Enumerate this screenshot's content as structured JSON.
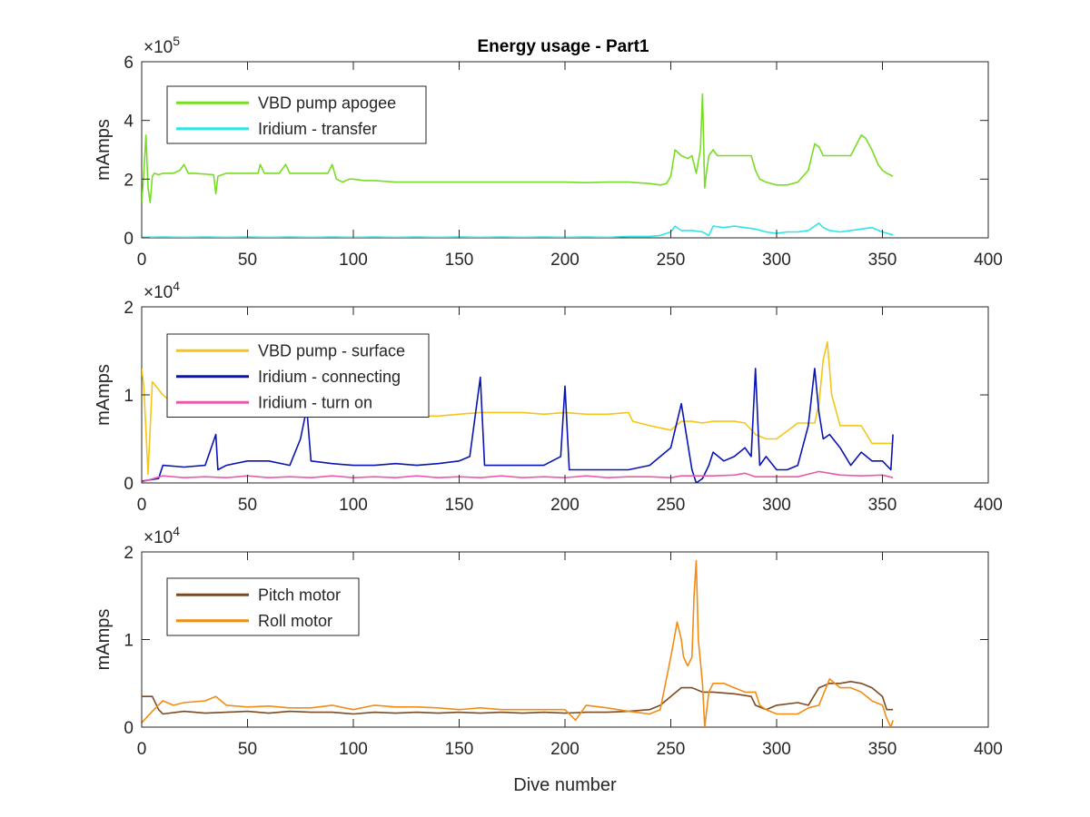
{
  "figure": {
    "title": "Energy usage - Part1"
  },
  "chart_data": [
    {
      "type": "line",
      "title": "Energy usage - Part1",
      "xlabel": "",
      "ylabel": "mAmps",
      "xlim": [
        0,
        400
      ],
      "ylim": [
        0,
        600000
      ],
      "x_ticks": [
        "0",
        "50",
        "100",
        "150",
        "200",
        "250",
        "300",
        "350",
        "400"
      ],
      "y_ticks": [
        "0",
        "2",
        "4",
        "6"
      ],
      "y_exponent": "×10",
      "y_exponent_power": "5",
      "grid": false,
      "legend_position": "top-left",
      "series": [
        {
          "name": "VBD pump apogee",
          "color": "#77dd22",
          "x": [
            0,
            1,
            2,
            3,
            4,
            5,
            6,
            8,
            10,
            15,
            18,
            20,
            22,
            25,
            34,
            35,
            36,
            40,
            50,
            55,
            56,
            58,
            65,
            68,
            70,
            80,
            88,
            90,
            92,
            95,
            98,
            100,
            105,
            110,
            120,
            130,
            150,
            170,
            190,
            200,
            210,
            220,
            230,
            240,
            245,
            248,
            250,
            252,
            255,
            258,
            260,
            262,
            264,
            265,
            266,
            267,
            268,
            270,
            272,
            275,
            280,
            285,
            288,
            290,
            292,
            295,
            300,
            305,
            310,
            315,
            318,
            320,
            322,
            325,
            330,
            335,
            340,
            342,
            345,
            348,
            350,
            352,
            355
          ],
          "y": [
            120000,
            220000,
            350000,
            170000,
            120000,
            210000,
            220000,
            215000,
            220000,
            220000,
            230000,
            250000,
            220000,
            220000,
            215000,
            150000,
            210000,
            220000,
            220000,
            220000,
            250000,
            220000,
            220000,
            250000,
            220000,
            220000,
            220000,
            250000,
            200000,
            190000,
            200000,
            200000,
            195000,
            195000,
            190000,
            190000,
            190000,
            190000,
            190000,
            190000,
            188000,
            190000,
            190000,
            185000,
            180000,
            185000,
            210000,
            300000,
            280000,
            270000,
            280000,
            220000,
            300000,
            490000,
            170000,
            230000,
            280000,
            300000,
            280000,
            280000,
            280000,
            280000,
            280000,
            230000,
            200000,
            190000,
            180000,
            180000,
            190000,
            230000,
            320000,
            310000,
            280000,
            280000,
            280000,
            280000,
            350000,
            340000,
            300000,
            250000,
            230000,
            220000,
            210000
          ]
        },
        {
          "name": "Iridium - transfer",
          "color": "#2ee6e6",
          "x": [
            0,
            10,
            20,
            30,
            40,
            50,
            60,
            70,
            80,
            90,
            100,
            110,
            120,
            130,
            140,
            150,
            160,
            170,
            180,
            190,
            200,
            210,
            220,
            230,
            240,
            245,
            250,
            252,
            255,
            260,
            265,
            268,
            270,
            275,
            280,
            285,
            290,
            295,
            300,
            305,
            310,
            315,
            320,
            322,
            325,
            330,
            335,
            340,
            345,
            350,
            355
          ],
          "y": [
            2000,
            3000,
            2000,
            3000,
            2000,
            3000,
            2000,
            3000,
            2000,
            3000,
            2000,
            3000,
            2000,
            3000,
            2000,
            3000,
            2000,
            3000,
            2000,
            3000,
            2000,
            3000,
            2000,
            5000,
            5000,
            8000,
            20000,
            40000,
            25000,
            25000,
            20000,
            8000,
            40000,
            35000,
            40000,
            35000,
            30000,
            20000,
            15000,
            20000,
            20000,
            25000,
            50000,
            35000,
            25000,
            20000,
            25000,
            30000,
            35000,
            20000,
            10000
          ]
        }
      ]
    },
    {
      "type": "line",
      "title": "",
      "xlabel": "",
      "ylabel": "mAmps",
      "xlim": [
        0,
        400
      ],
      "ylim": [
        0,
        20000
      ],
      "x_ticks": [
        "0",
        "50",
        "100",
        "150",
        "200",
        "250",
        "300",
        "350",
        "400"
      ],
      "y_ticks": [
        "0",
        "1",
        "2"
      ],
      "y_exponent": "×10",
      "y_exponent_power": "4",
      "grid": false,
      "legend_position": "top-left",
      "series": [
        {
          "name": "VBD pump - surface",
          "color": "#f5c518",
          "x": [
            0,
            1,
            3,
            5,
            10,
            15,
            20,
            25,
            30,
            40,
            50,
            60,
            70,
            80,
            90,
            100,
            110,
            120,
            130,
            140,
            150,
            160,
            170,
            180,
            190,
            200,
            210,
            220,
            230,
            232,
            240,
            250,
            255,
            260,
            265,
            270,
            280,
            285,
            290,
            295,
            300,
            310,
            318,
            320,
            322,
            324,
            326,
            330,
            340,
            345,
            350,
            355
          ],
          "y": [
            13000,
            11000,
            1000,
            11500,
            10000,
            9000,
            9500,
            9000,
            8800,
            8500,
            8200,
            8000,
            8000,
            8000,
            7800,
            7800,
            7800,
            7800,
            7600,
            7600,
            7800,
            8000,
            8000,
            8000,
            7800,
            8000,
            7800,
            7800,
            8000,
            7000,
            6500,
            6000,
            7000,
            7000,
            6800,
            7000,
            7000,
            6800,
            5500,
            5000,
            5000,
            6800,
            6800,
            9000,
            14000,
            16000,
            10000,
            6500,
            6500,
            4500,
            4500,
            4500
          ]
        },
        {
          "name": "Iridium - connecting",
          "color": "#0a14b4",
          "x": [
            0,
            8,
            10,
            20,
            30,
            35,
            36,
            40,
            50,
            60,
            70,
            75,
            78,
            80,
            90,
            100,
            110,
            120,
            130,
            140,
            150,
            155,
            160,
            162,
            170,
            180,
            190,
            198,
            200,
            202,
            210,
            220,
            230,
            240,
            245,
            250,
            255,
            260,
            262,
            265,
            268,
            270,
            275,
            280,
            285,
            288,
            290,
            292,
            295,
            300,
            305,
            310,
            315,
            318,
            320,
            322,
            325,
            330,
            335,
            340,
            345,
            350,
            354,
            355
          ],
          "y": [
            200,
            500,
            2000,
            1800,
            2000,
            5500,
            1500,
            2000,
            2500,
            2500,
            2000,
            5000,
            8500,
            2500,
            2200,
            2000,
            2000,
            2200,
            2000,
            2200,
            2500,
            3000,
            12000,
            2000,
            2000,
            2000,
            2000,
            3000,
            11000,
            1500,
            1500,
            1500,
            1500,
            2000,
            3000,
            4000,
            9000,
            1500,
            0,
            500,
            2000,
            3500,
            2500,
            3000,
            4000,
            3000,
            13000,
            2000,
            3000,
            1500,
            1500,
            2000,
            6500,
            13000,
            8000,
            5000,
            5500,
            4000,
            2000,
            3500,
            2500,
            2500,
            1500,
            5500
          ]
        },
        {
          "name": "Iridium - turn on",
          "color": "#ea5aa8",
          "x": [
            0,
            10,
            20,
            30,
            40,
            50,
            60,
            70,
            80,
            90,
            100,
            110,
            120,
            130,
            140,
            150,
            160,
            170,
            180,
            190,
            200,
            210,
            220,
            230,
            240,
            250,
            255,
            260,
            270,
            280,
            285,
            290,
            300,
            310,
            320,
            325,
            330,
            340,
            350,
            355
          ],
          "y": [
            100,
            800,
            600,
            700,
            600,
            800,
            600,
            700,
            600,
            800,
            600,
            700,
            600,
            800,
            600,
            700,
            600,
            800,
            600,
            700,
            600,
            800,
            600,
            700,
            700,
            600,
            800,
            800,
            800,
            900,
            1100,
            700,
            700,
            700,
            1300,
            1100,
            900,
            800,
            900,
            600
          ]
        }
      ]
    },
    {
      "type": "line",
      "title": "",
      "xlabel": "Dive number",
      "ylabel": "mAmps",
      "xlim": [
        0,
        400
      ],
      "ylim": [
        0,
        20000
      ],
      "x_ticks": [
        "0",
        "50",
        "100",
        "150",
        "200",
        "250",
        "300",
        "350",
        "400"
      ],
      "y_ticks": [
        "0",
        "1",
        "2"
      ],
      "y_exponent": "×10",
      "y_exponent_power": "4",
      "grid": false,
      "legend_position": "top-left",
      "series": [
        {
          "name": "Pitch motor",
          "color": "#7b4a22",
          "x": [
            0,
            5,
            8,
            10,
            20,
            30,
            40,
            50,
            60,
            70,
            80,
            90,
            100,
            110,
            120,
            130,
            140,
            150,
            160,
            170,
            180,
            190,
            200,
            210,
            220,
            230,
            240,
            245,
            250,
            255,
            260,
            265,
            270,
            280,
            288,
            290,
            295,
            300,
            310,
            315,
            320,
            325,
            330,
            335,
            340,
            345,
            350,
            352,
            355
          ],
          "y": [
            3500,
            3500,
            2000,
            1500,
            1800,
            1600,
            1700,
            1800,
            1600,
            1800,
            1700,
            1700,
            1500,
            1700,
            1600,
            1700,
            1600,
            1700,
            1600,
            1700,
            1600,
            1700,
            1600,
            1700,
            1700,
            1800,
            2000,
            2500,
            3500,
            4500,
            4500,
            4000,
            4000,
            3800,
            3500,
            2500,
            2000,
            2500,
            2800,
            2500,
            4500,
            5000,
            5000,
            5200,
            5000,
            4500,
            3500,
            2000,
            2000
          ]
        },
        {
          "name": "Roll motor",
          "color": "#f28c14",
          "x": [
            0,
            5,
            10,
            15,
            20,
            30,
            35,
            40,
            50,
            60,
            70,
            80,
            90,
            100,
            110,
            120,
            130,
            140,
            150,
            160,
            170,
            180,
            190,
            200,
            205,
            210,
            220,
            230,
            240,
            245,
            250,
            253,
            255,
            256,
            258,
            260,
            261,
            262,
            263,
            265,
            266,
            268,
            270,
            275,
            280,
            285,
            290,
            292,
            295,
            300,
            310,
            315,
            320,
            325,
            330,
            335,
            340,
            345,
            350,
            352,
            354,
            355
          ],
          "y": [
            500,
            1800,
            3000,
            2500,
            2800,
            3000,
            3500,
            2500,
            2300,
            2400,
            2200,
            2200,
            2500,
            2000,
            2500,
            2300,
            2300,
            2200,
            2000,
            2200,
            2000,
            2000,
            2000,
            2000,
            800,
            2500,
            2200,
            1800,
            1500,
            2000,
            8000,
            12000,
            10000,
            8000,
            7000,
            8000,
            15000,
            19000,
            10000,
            5000,
            0,
            4000,
            5000,
            5000,
            4500,
            4000,
            4000,
            2500,
            2000,
            1500,
            1500,
            2200,
            2500,
            5500,
            4500,
            4500,
            4000,
            3000,
            2500,
            1000,
            0,
            800
          ]
        }
      ]
    }
  ]
}
